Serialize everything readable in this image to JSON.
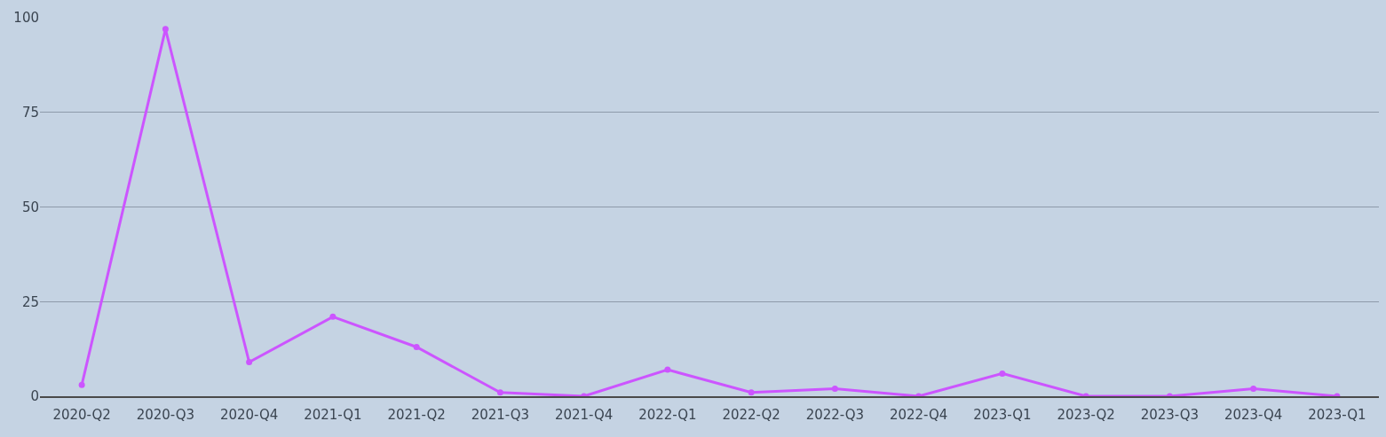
{
  "chart_data": {
    "type": "line",
    "categories": [
      "2020-Q2",
      "2020-Q3",
      "2020-Q4",
      "2021-Q1",
      "2021-Q2",
      "2021-Q3",
      "2021-Q4",
      "2022-Q1",
      "2022-Q2",
      "2022-Q3",
      "2022-Q4",
      "2023-Q1",
      "2023-Q2",
      "2023-Q3",
      "2023-Q4",
      "2023-Q1"
    ],
    "series": [
      {
        "color": "#cc55ff",
        "values": [
          3,
          97,
          9,
          21,
          13,
          1,
          0,
          7,
          1,
          2,
          0,
          6,
          0,
          0,
          2,
          0
        ]
      }
    ],
    "ylim": [
      0,
      100
    ],
    "yticks": [
      0,
      25,
      50,
      75,
      100
    ],
    "grid": "y",
    "marker": "circle",
    "line_style": "solid"
  }
}
